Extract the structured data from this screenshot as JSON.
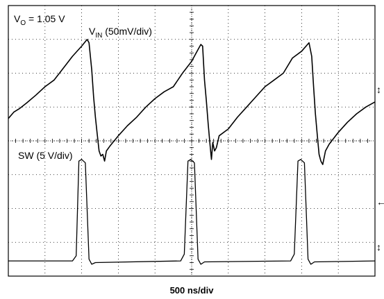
{
  "chart_data": {
    "type": "line",
    "title": "",
    "annotation_vo": {
      "prefix": "V",
      "sub": "O",
      "suffix": " = 1.05 V"
    },
    "xlabel": "500 ns/div",
    "grid": true,
    "colors": {
      "trace": "#000000",
      "grid": "#000000",
      "background": "#ffffff"
    },
    "x_divisions": 10,
    "y_divisions": 8,
    "series": [
      {
        "name": "V_IN",
        "label": {
          "prefix": "V",
          "sub": "IN",
          "suffix": " (50mV/div)"
        },
        "scale": "50mV/div",
        "points": [
          [
            0.0,
            3.34
          ],
          [
            0.3,
            3.15
          ],
          [
            0.6,
            3.05
          ],
          [
            1.0,
            2.88
          ],
          [
            1.5,
            2.65
          ],
          [
            2.0,
            2.4
          ],
          [
            2.5,
            2.2
          ],
          [
            3.0,
            1.85
          ],
          [
            3.5,
            1.5
          ],
          [
            4.0,
            1.2
          ],
          [
            4.3,
            1.0
          ],
          [
            4.4,
            1.1
          ],
          [
            4.55,
            1.9
          ],
          [
            4.65,
            2.7
          ],
          [
            4.75,
            3.3
          ],
          [
            4.85,
            3.8
          ],
          [
            4.95,
            4.3
          ],
          [
            5.05,
            4.45
          ],
          [
            5.15,
            4.4
          ],
          [
            5.25,
            4.6
          ],
          [
            5.35,
            4.3
          ],
          [
            5.55,
            4.15
          ],
          [
            6.0,
            3.85
          ],
          [
            6.5,
            3.55
          ],
          [
            7.0,
            3.3
          ],
          [
            7.5,
            3.0
          ],
          [
            8.0,
            2.75
          ],
          [
            8.5,
            2.55
          ],
          [
            9.0,
            2.4
          ],
          [
            9.5,
            2.0
          ],
          [
            10.0,
            1.65
          ],
          [
            10.3,
            1.35
          ],
          [
            10.5,
            1.15
          ],
          [
            10.6,
            1.2
          ],
          [
            10.7,
            2.2
          ],
          [
            10.8,
            2.8
          ],
          [
            10.9,
            3.5
          ],
          [
            11.0,
            4.1
          ],
          [
            11.08,
            4.55
          ],
          [
            11.15,
            4.05
          ],
          [
            11.25,
            4.3
          ],
          [
            11.35,
            4.2
          ],
          [
            11.5,
            3.85
          ],
          [
            12.0,
            3.65
          ],
          [
            12.5,
            3.3
          ],
          [
            13.0,
            3.0
          ],
          [
            13.5,
            2.7
          ],
          [
            14.0,
            2.4
          ],
          [
            14.5,
            2.2
          ],
          [
            15.0,
            2.0
          ],
          [
            15.5,
            1.55
          ],
          [
            16.0,
            1.35
          ],
          [
            16.4,
            1.1
          ],
          [
            16.55,
            1.5
          ],
          [
            16.65,
            2.4
          ],
          [
            16.75,
            3.2
          ],
          [
            16.85,
            3.8
          ],
          [
            16.95,
            4.4
          ],
          [
            17.05,
            4.6
          ],
          [
            17.15,
            4.7
          ],
          [
            17.3,
            4.3
          ],
          [
            17.5,
            4.1
          ],
          [
            18.0,
            3.75
          ],
          [
            18.5,
            3.45
          ],
          [
            19.0,
            3.2
          ],
          [
            19.5,
            3.0
          ],
          [
            20.0,
            2.85
          ]
        ]
      },
      {
        "name": "SW",
        "label": {
          "prefix": "SW",
          "sub": "",
          "suffix": " (5 V/div)"
        },
        "scale": "5 V/div",
        "points": [
          [
            0.0,
            7.55
          ],
          [
            3.5,
            7.55
          ],
          [
            3.7,
            7.4
          ],
          [
            3.85,
            4.6
          ],
          [
            4.0,
            4.55
          ],
          [
            4.2,
            4.65
          ],
          [
            4.4,
            7.5
          ],
          [
            4.55,
            7.65
          ],
          [
            4.75,
            7.6
          ],
          [
            9.4,
            7.55
          ],
          [
            9.6,
            7.35
          ],
          [
            9.8,
            4.6
          ],
          [
            9.95,
            4.55
          ],
          [
            10.15,
            4.65
          ],
          [
            10.35,
            7.5
          ],
          [
            10.5,
            7.65
          ],
          [
            10.7,
            7.58
          ],
          [
            15.4,
            7.55
          ],
          [
            15.6,
            7.35
          ],
          [
            15.8,
            4.6
          ],
          [
            15.95,
            4.55
          ],
          [
            16.15,
            4.65
          ],
          [
            16.35,
            7.5
          ],
          [
            16.5,
            7.65
          ],
          [
            16.7,
            7.58
          ],
          [
            20.0,
            7.55
          ]
        ]
      }
    ],
    "markers": {
      "right_glyphs": [
        "↕",
        "↕",
        "←"
      ]
    }
  }
}
